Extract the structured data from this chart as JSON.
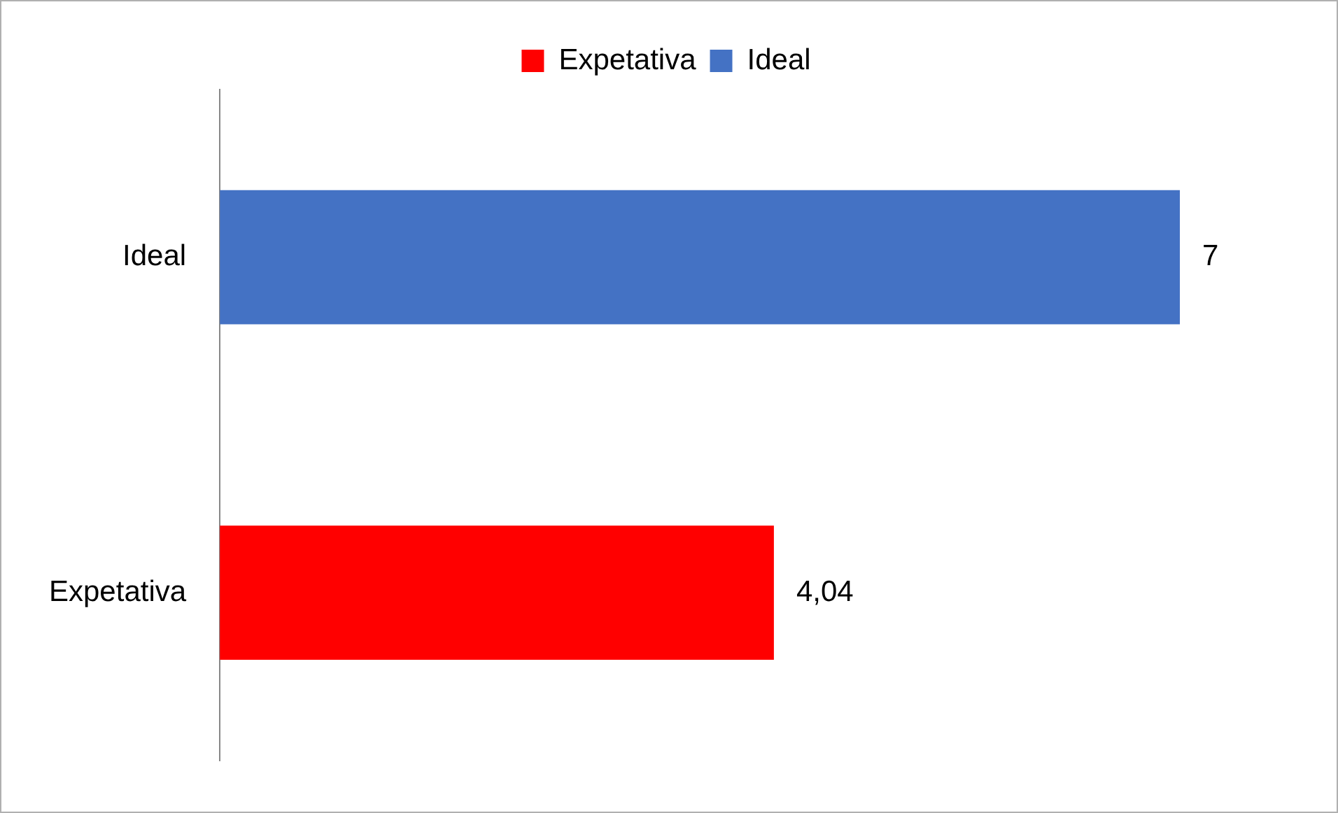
{
  "chart_data": {
    "type": "bar",
    "orientation": "horizontal",
    "stacked": true,
    "categories": [
      "Ideal",
      "Expetativa"
    ],
    "series": [
      {
        "name": "Expetativa",
        "color": "#ff0000",
        "values": [
          null,
          4.04
        ],
        "value_labels": [
          null,
          "4,04"
        ]
      },
      {
        "name": "Ideal",
        "color": "#4472c4",
        "values": [
          7,
          null
        ],
        "value_labels": [
          "7",
          null
        ]
      }
    ],
    "tick_labels": "y",
    "grid": false,
    "legend": "top"
  }
}
